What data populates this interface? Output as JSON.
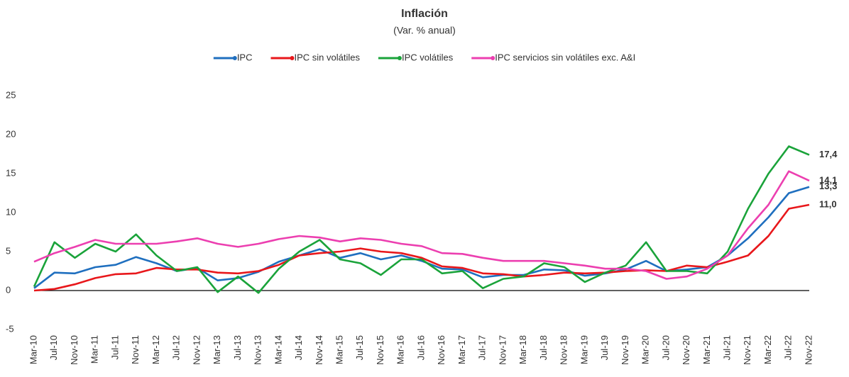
{
  "chart_data": {
    "type": "line",
    "title": "Inflación",
    "subtitle": "(Var. % anual)",
    "categories": [
      "Mar-10",
      "Jul-10",
      "Nov-10",
      "Mar-11",
      "Jul-11",
      "Nov-11",
      "Mar-12",
      "Jul-12",
      "Nov-12",
      "Mar-13",
      "Jul-13",
      "Nov-13",
      "Mar-14",
      "Jul-14",
      "Nov-14",
      "Mar-15",
      "Jul-15",
      "Nov-15",
      "Mar-16",
      "Jul-16",
      "Nov-16",
      "Mar-17",
      "Jul-17",
      "Nov-17",
      "Mar-18",
      "Jul-18",
      "Nov-18",
      "Mar-19",
      "Jul-19",
      "Nov-19",
      "Mar-20",
      "Jul-20",
      "Nov-20",
      "Mar-21",
      "Jul-21",
      "Nov-21",
      "Mar-22",
      "Jul-22",
      "Nov-22"
    ],
    "series": [
      {
        "name": "IPC",
        "color": "#1f6fbf",
        "values": [
          0.3,
          2.3,
          2.2,
          3.0,
          3.3,
          4.3,
          3.5,
          2.5,
          2.9,
          1.3,
          1.6,
          2.4,
          3.7,
          4.5,
          5.3,
          4.2,
          4.8,
          4.0,
          4.5,
          3.8,
          2.8,
          2.7,
          1.7,
          2.0,
          2.0,
          2.7,
          2.6,
          1.9,
          2.2,
          2.7,
          3.8,
          2.5,
          2.7,
          3.0,
          4.5,
          6.7,
          9.4,
          12.5,
          13.3
        ],
        "end_label": "13,3"
      },
      {
        "name": "IPC sin volátiles",
        "color": "#e8171b",
        "values": [
          0.0,
          0.2,
          0.8,
          1.6,
          2.1,
          2.2,
          2.9,
          2.7,
          2.7,
          2.3,
          2.2,
          2.5,
          3.3,
          4.5,
          4.8,
          5.0,
          5.4,
          5.0,
          4.8,
          4.2,
          3.1,
          2.9,
          2.2,
          2.1,
          1.8,
          2.0,
          2.3,
          2.2,
          2.3,
          2.5,
          2.6,
          2.5,
          3.2,
          3.0,
          3.7,
          4.5,
          7.0,
          10.5,
          11.0
        ],
        "end_label": "11,0"
      },
      {
        "name": "IPC volátiles",
        "color": "#1aa33a",
        "values": [
          0.5,
          6.2,
          4.2,
          6.0,
          5.0,
          7.2,
          4.5,
          2.5,
          3.0,
          -0.2,
          1.8,
          -0.3,
          2.8,
          5.0,
          6.5,
          4.0,
          3.5,
          2.0,
          4.0,
          4.0,
          2.2,
          2.5,
          0.3,
          1.5,
          1.8,
          3.5,
          3.0,
          1.1,
          2.3,
          3.2,
          6.2,
          2.5,
          2.5,
          2.2,
          5.0,
          10.5,
          15.0,
          18.5,
          17.4
        ],
        "end_label": "17,4"
      },
      {
        "name": "IPC servicios sin volátiles exc. A&I",
        "color": "#ec3fb0",
        "values": [
          3.7,
          4.8,
          5.6,
          6.5,
          6.0,
          6.0,
          6.0,
          6.3,
          6.7,
          6.0,
          5.6,
          6.0,
          6.6,
          7.0,
          6.8,
          6.3,
          6.7,
          6.5,
          6.0,
          5.7,
          4.8,
          4.7,
          4.2,
          3.8,
          3.8,
          3.8,
          3.5,
          3.2,
          2.8,
          2.8,
          2.5,
          1.5,
          1.8,
          2.8,
          4.5,
          8.0,
          11.0,
          15.3,
          14.1
        ],
        "end_label": "14,1"
      }
    ],
    "ylim": [
      -5,
      25
    ],
    "yticks": [
      -5,
      0,
      5,
      10,
      15,
      20,
      25
    ],
    "grid": false
  }
}
